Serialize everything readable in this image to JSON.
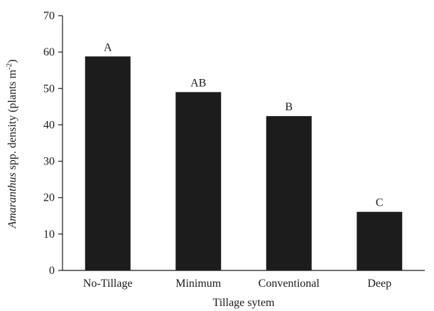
{
  "chart_data": {
    "type": "bar",
    "categories": [
      "No-Tillage",
      "Minimum",
      "Conventional",
      "Deep"
    ],
    "values": [
      58.8,
      49.0,
      42.4,
      16.1
    ],
    "data_labels": [
      "A",
      "AB",
      "B",
      "C"
    ],
    "xlabel": "Tillage sytem",
    "ylabel": {
      "italic": "Amaranthus",
      "text": " spp. density (plants m",
      "superscript": "-2",
      "close": ")"
    },
    "ylim": [
      0,
      70
    ],
    "yticks": [
      "0",
      "10",
      "20",
      "30",
      "40",
      "50",
      "60",
      "70"
    ],
    "grid": false,
    "legend": "none",
    "bar_color": "#1c1c1c"
  }
}
